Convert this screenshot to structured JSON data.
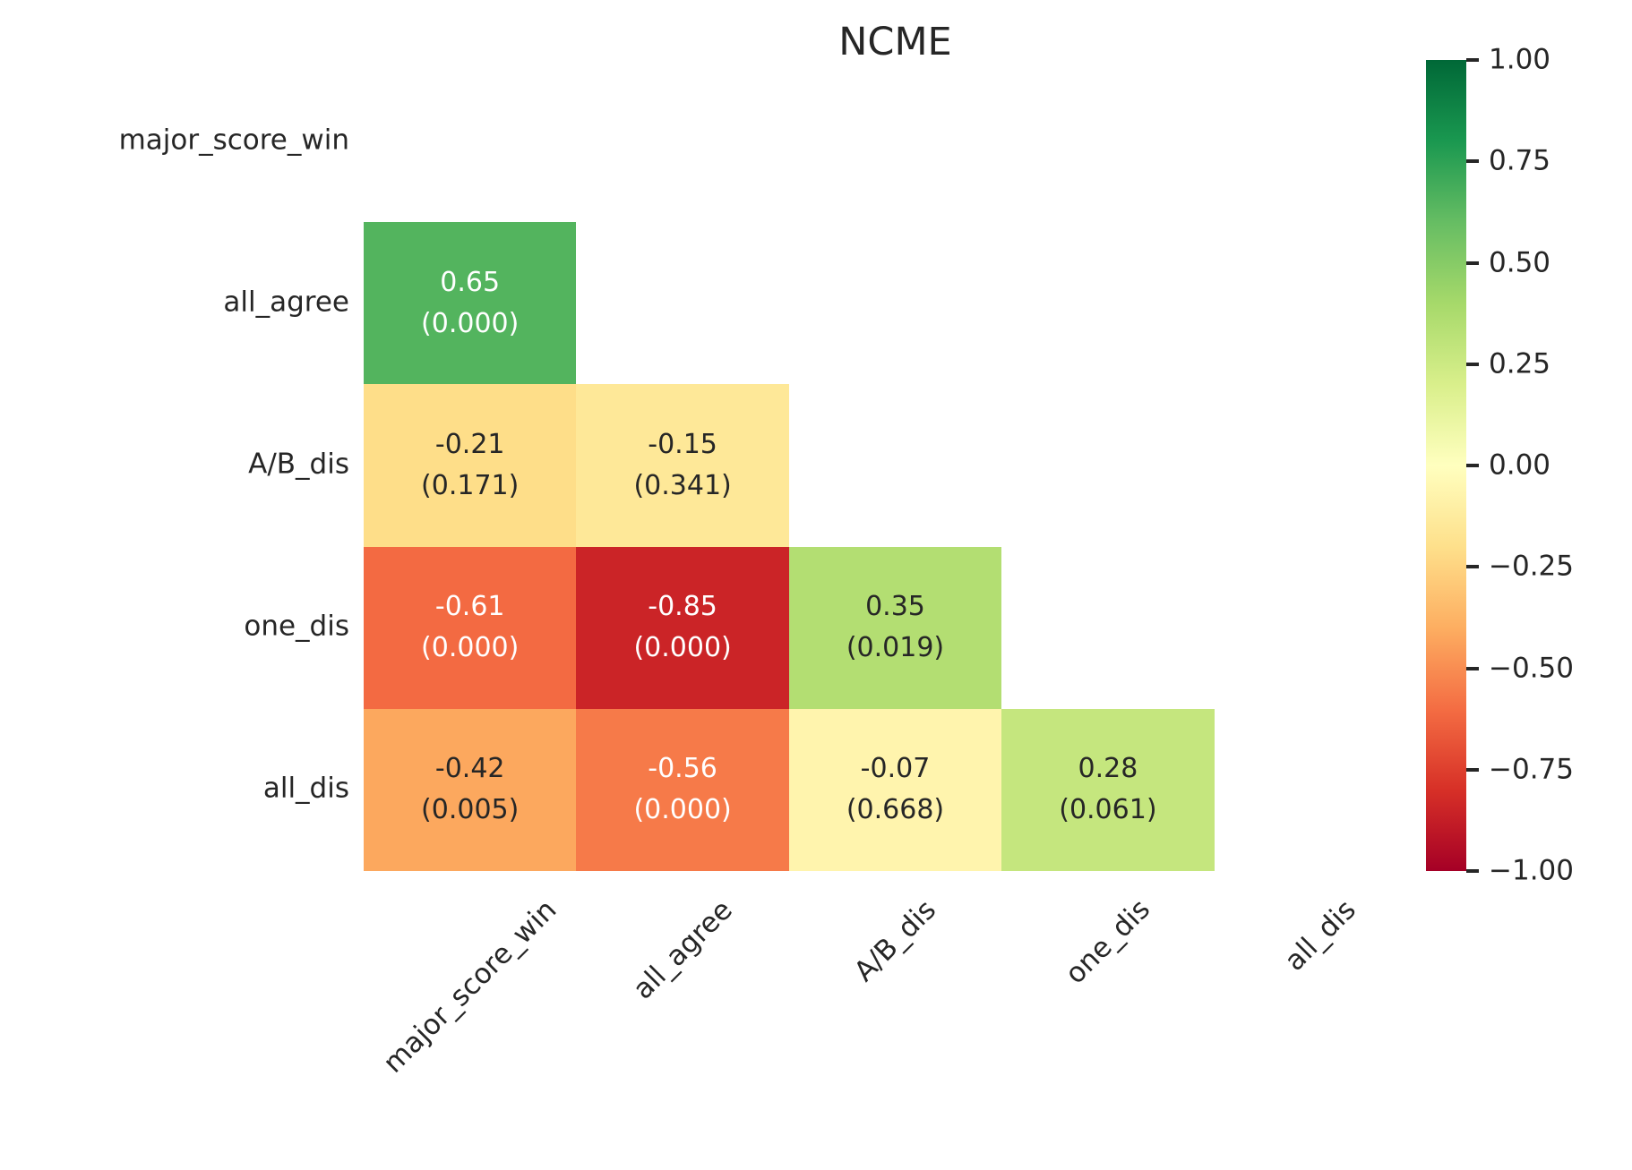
{
  "title": "NCME",
  "colors": {
    "background": "#ffffff",
    "text_dark": "#262626",
    "text_light": "#ffffff",
    "colormap_name": "RdYlGn",
    "colormap_stops": [
      [
        0.0,
        "#a50026"
      ],
      [
        0.1,
        "#d73027"
      ],
      [
        0.2,
        "#f46d43"
      ],
      [
        0.3,
        "#fdae61"
      ],
      [
        0.4,
        "#fee08b"
      ],
      [
        0.5,
        "#ffffbf"
      ],
      [
        0.6,
        "#d9ef8b"
      ],
      [
        0.7,
        "#a6d96a"
      ],
      [
        0.8,
        "#66bd63"
      ],
      [
        0.9,
        "#1a9850"
      ],
      [
        1.0,
        "#006837"
      ]
    ]
  },
  "colorbar": {
    "tick_labels": [
      "1.00",
      "0.75",
      "0.50",
      "0.25",
      "0.00",
      "−0.25",
      "−0.50",
      "−0.75",
      "−1.00"
    ]
  },
  "cells": [
    {
      "row": 1,
      "col": 0,
      "value": 0.65,
      "value_text": "0.65",
      "p_text": "(0.000)"
    },
    {
      "row": 2,
      "col": 0,
      "value": -0.21,
      "value_text": "-0.21",
      "p_text": "(0.171)"
    },
    {
      "row": 2,
      "col": 1,
      "value": -0.15,
      "value_text": "-0.15",
      "p_text": "(0.341)"
    },
    {
      "row": 3,
      "col": 0,
      "value": -0.61,
      "value_text": "-0.61",
      "p_text": "(0.000)"
    },
    {
      "row": 3,
      "col": 1,
      "value": -0.85,
      "value_text": "-0.85",
      "p_text": "(0.000)"
    },
    {
      "row": 3,
      "col": 2,
      "value": 0.35,
      "value_text": "0.35",
      "p_text": "(0.019)"
    },
    {
      "row": 4,
      "col": 0,
      "value": -0.42,
      "value_text": "-0.42",
      "p_text": "(0.005)"
    },
    {
      "row": 4,
      "col": 1,
      "value": -0.56,
      "value_text": "-0.56",
      "p_text": "(0.000)"
    },
    {
      "row": 4,
      "col": 2,
      "value": -0.07,
      "value_text": "-0.07",
      "p_text": "(0.668)"
    },
    {
      "row": 4,
      "col": 3,
      "value": 0.28,
      "value_text": "0.28",
      "p_text": "(0.061)"
    }
  ],
  "chart_data": {
    "type": "heatmap",
    "title": "NCME",
    "rows": [
      "major_score_win",
      "all_agree",
      "A/B_dis",
      "one_dis",
      "all_dis"
    ],
    "cols": [
      "major_score_win",
      "all_agree",
      "A/B_dis",
      "one_dis",
      "all_dis"
    ],
    "mask": "upper-triangle-and-diagonal",
    "colormap": "RdYlGn",
    "vmin": -1.0,
    "vmax": 1.0,
    "legend_position": "right-colorbar",
    "values": [
      [
        null,
        null,
        null,
        null,
        null
      ],
      [
        0.65,
        null,
        null,
        null,
        null
      ],
      [
        -0.21,
        -0.15,
        null,
        null,
        null
      ],
      [
        -0.61,
        -0.85,
        0.35,
        null,
        null
      ],
      [
        -0.42,
        -0.56,
        -0.07,
        0.28,
        null
      ]
    ],
    "p_values": [
      [
        null,
        null,
        null,
        null,
        null
      ],
      [
        0.0,
        null,
        null,
        null,
        null
      ],
      [
        0.171,
        0.341,
        null,
        null,
        null
      ],
      [
        0.0,
        0.0,
        0.019,
        null,
        null
      ],
      [
        0.005,
        0.0,
        0.668,
        0.061,
        null
      ]
    ]
  }
}
